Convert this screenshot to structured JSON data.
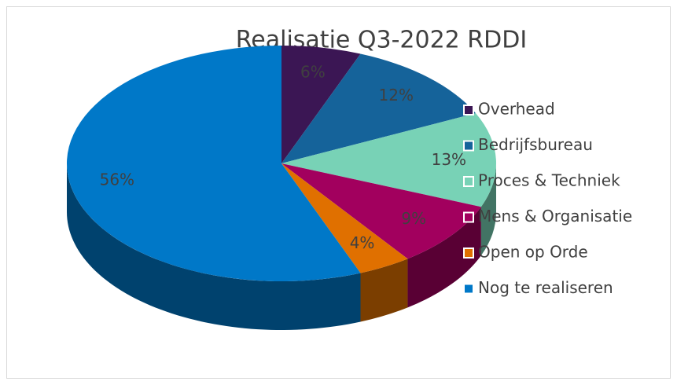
{
  "chart_data": {
    "type": "pie3d",
    "title": "Realisatie Q3-2022 RDDI",
    "categories": [
      "Overhead",
      "Bedrijfsbureau",
      "Proces & Techniek",
      "Mens & Organisatie",
      "Open op Orde",
      "Nog te realiseren"
    ],
    "values": [
      6,
      12,
      13,
      9,
      4,
      56
    ],
    "value_labels": [
      "6%",
      "12%",
      "13%",
      "9%",
      "4%",
      "56%"
    ],
    "colors": [
      "#3b1654",
      "#15639a",
      "#78d2b6",
      "#a2005e",
      "#e07000",
      "#0078c8"
    ],
    "legend": "right"
  }
}
